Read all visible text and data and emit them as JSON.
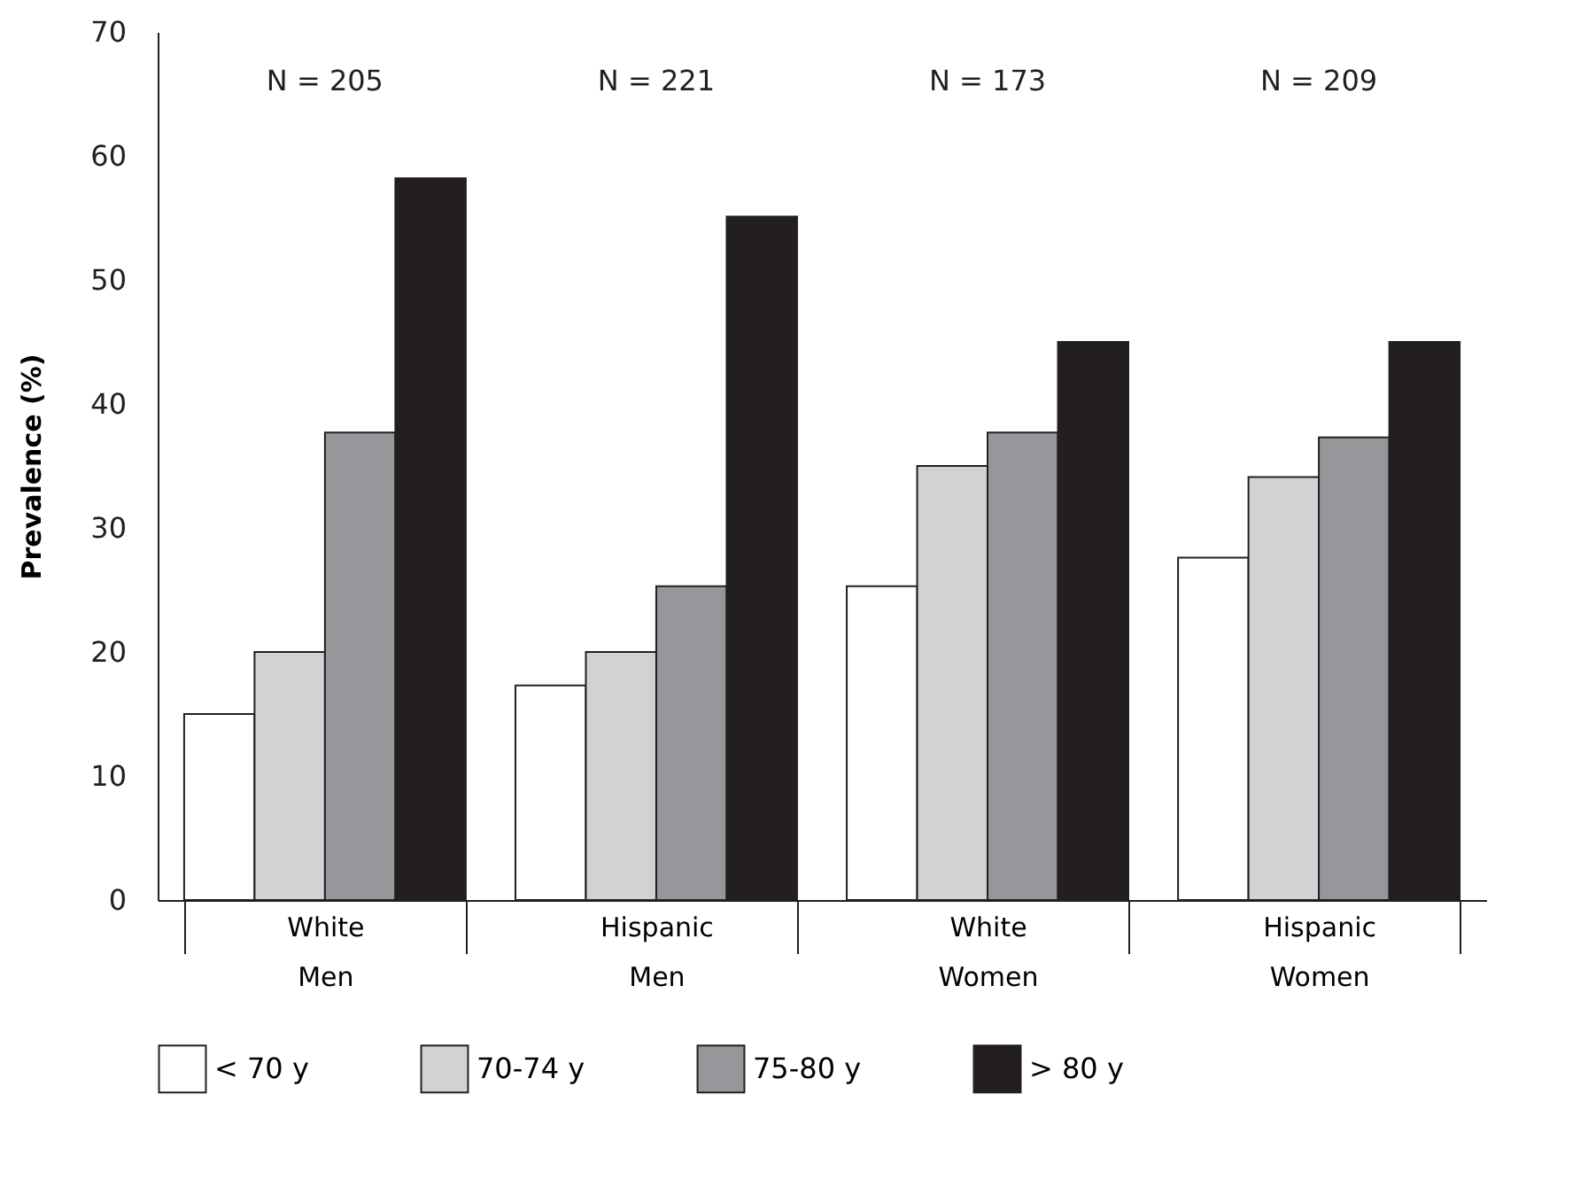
{
  "chart_data": {
    "type": "bar",
    "ylabel": "Prevalence (%)",
    "categories": [
      "White Men",
      "Hispanic Men",
      "White Women",
      "Hispanic Women"
    ],
    "series": [
      {
        "name": "< 70 y",
        "color": "#ffffff",
        "values": [
          15.0,
          17.3,
          25.3,
          27.6
        ]
      },
      {
        "name": "70-74 y",
        "color": "#d1d2d4",
        "values": [
          20.0,
          20.0,
          35.0,
          34.1
        ]
      },
      {
        "name": "75-80 y",
        "color": "#96979b",
        "values": [
          37.7,
          25.3,
          37.7,
          37.3
        ]
      },
      {
        "name": "> 80 y",
        "color": "#231f20",
        "values": [
          58.2,
          55.1,
          45.0,
          45.0
        ]
      }
    ],
    "annotations": [
      "N = 205",
      "N = 221",
      "N = 173",
      "N = 209"
    ],
    "ylim": [
      0,
      70
    ],
    "yticks": [
      0,
      10,
      20,
      30,
      40,
      50,
      60,
      70
    ],
    "grid": false,
    "legend": "bottom"
  }
}
